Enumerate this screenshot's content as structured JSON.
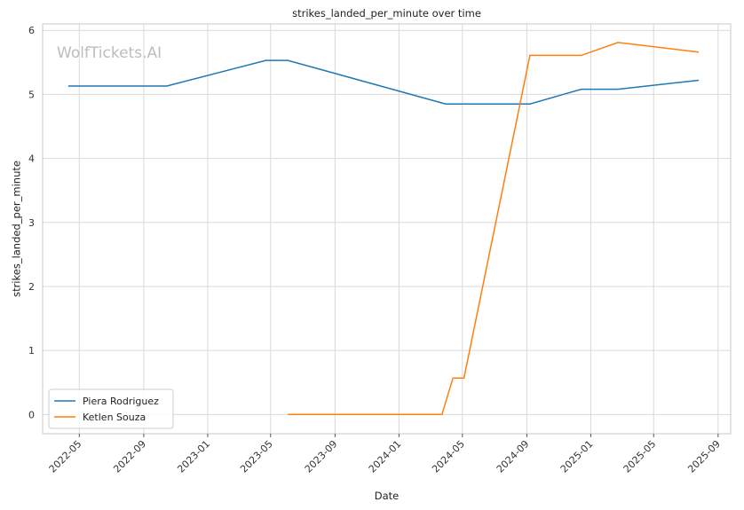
{
  "chart_data": {
    "type": "line",
    "title": "strikes_landed_per_minute over time",
    "xlabel": "Date",
    "ylabel": "strikes_landed_per_minute",
    "watermark": "WolfTickets.AI",
    "xlim": [
      "2022-02-20",
      "2025-09-25"
    ],
    "ylim": [
      -0.3,
      6.1
    ],
    "x_ticks": [
      "2022-05",
      "2022-09",
      "2023-01",
      "2023-05",
      "2023-09",
      "2024-01",
      "2024-05",
      "2024-09",
      "2025-01",
      "2025-05",
      "2025-09"
    ],
    "y_ticks": [
      0,
      1,
      2,
      3,
      4,
      5,
      6
    ],
    "grid": true,
    "legend_position": "lower-left",
    "series": [
      {
        "name": "Piera Rodriguez",
        "color": "#1f77b4",
        "points": [
          {
            "x": "2022-04-10",
            "y": 5.13
          },
          {
            "x": "2022-10-15",
            "y": 5.13
          },
          {
            "x": "2023-04-22",
            "y": 5.53
          },
          {
            "x": "2023-06-03",
            "y": 5.53
          },
          {
            "x": "2024-03-30",
            "y": 4.85
          },
          {
            "x": "2024-09-07",
            "y": 4.85
          },
          {
            "x": "2024-12-14",
            "y": 5.08
          },
          {
            "x": "2025-02-22",
            "y": 5.08
          },
          {
            "x": "2025-07-26",
            "y": 5.22
          }
        ]
      },
      {
        "name": "Ketlen Souza",
        "color": "#ff7f0e",
        "points": [
          {
            "x": "2023-06-03",
            "y": 0.0
          },
          {
            "x": "2024-03-23",
            "y": 0.0
          },
          {
            "x": "2024-04-13",
            "y": 0.57
          },
          {
            "x": "2024-05-04",
            "y": 0.57
          },
          {
            "x": "2024-09-07",
            "y": 5.61
          },
          {
            "x": "2024-12-14",
            "y": 5.61
          },
          {
            "x": "2025-02-22",
            "y": 5.81
          },
          {
            "x": "2025-07-26",
            "y": 5.66
          }
        ]
      }
    ]
  }
}
